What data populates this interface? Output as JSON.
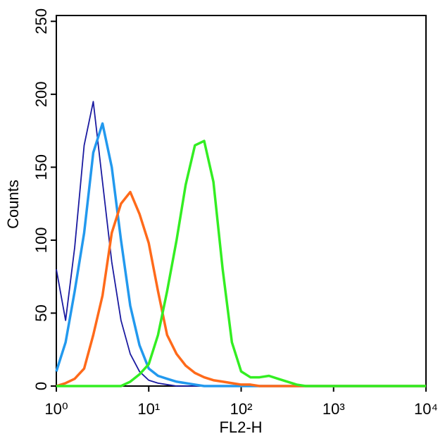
{
  "chart_data": {
    "type": "line",
    "xlabel": "FL2-H",
    "ylabel": "Counts",
    "log_x": true,
    "x": [
      1,
      1.26,
      1.58,
      2,
      2.51,
      3.16,
      3.98,
      5.01,
      6.31,
      7.94,
      10,
      12.6,
      15.8,
      20,
      25.1,
      31.6,
      39.8,
      50.1,
      63.1,
      79.4,
      100,
      126,
      158,
      200,
      251,
      316,
      398,
      501,
      631,
      794,
      1000,
      10000
    ],
    "series": [
      {
        "color": "#1a1aa0",
        "values": [
          80,
          45,
          95,
          165,
          195,
          140,
          85,
          45,
          22,
          10,
          4,
          2,
          1,
          0,
          0,
          0,
          0,
          0,
          0,
          0,
          0,
          0,
          0,
          0,
          0,
          0,
          0,
          0,
          0,
          0,
          0,
          0
        ]
      },
      {
        "color": "#2299ee",
        "values": [
          10,
          30,
          65,
          105,
          160,
          180,
          150,
          100,
          55,
          28,
          12,
          7,
          5,
          3,
          2,
          1,
          0,
          0,
          0,
          0,
          0,
          0,
          0,
          0,
          0,
          0,
          0,
          0,
          0,
          0,
          0,
          0
        ]
      },
      {
        "color": "#ff6a1a",
        "values": [
          0,
          2,
          5,
          12,
          35,
          62,
          105,
          125,
          133,
          118,
          98,
          65,
          35,
          22,
          14,
          9,
          6,
          4,
          3,
          2,
          1,
          1,
          0,
          0,
          0,
          0,
          0,
          0,
          0,
          0,
          0,
          0
        ]
      },
      {
        "color": "#33ee22",
        "values": [
          0,
          0,
          0,
          0,
          0,
          0,
          0,
          0,
          3,
          8,
          15,
          35,
          65,
          100,
          138,
          165,
          168,
          140,
          80,
          30,
          10,
          6,
          6,
          7,
          5,
          3,
          1,
          0,
          0,
          0,
          0,
          0
        ]
      }
    ],
    "xlim": [
      1,
      10000
    ],
    "xticks": [
      {
        "value": 1,
        "label": "10⁰"
      },
      {
        "value": 10,
        "label": "10¹"
      },
      {
        "value": 100,
        "label": "10²"
      },
      {
        "value": 1000,
        "label": "10³"
      },
      {
        "value": 10000,
        "label": "10⁴"
      }
    ],
    "ylim": [
      0,
      254
    ],
    "yticks": [
      0,
      50,
      100,
      150,
      200,
      250
    ]
  }
}
